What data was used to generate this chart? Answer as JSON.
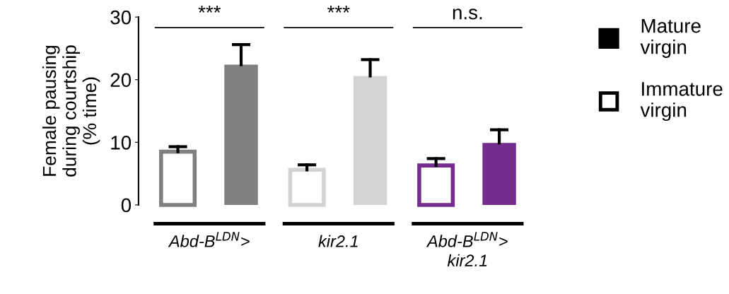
{
  "chart_data": {
    "type": "bar",
    "ylabel": "Female pausing\nduring courtship\n(% time)",
    "categories": [
      "Abd-B$^{LDN}$>",
      "kir2.1",
      "Abd-B$^{LDN}$>\nkir2.1"
    ],
    "series": [
      {
        "name": "Immature\nvirgin",
        "color": "#000000",
        "colors": [
          "#808080",
          "#d3d3d3",
          "#742c8e"
        ],
        "values": [
          8.5,
          5.6,
          6.3
        ],
        "errors": [
          [
            8.5,
            9.3
          ],
          [
            5.6,
            6.4
          ],
          [
            6.3,
            7.4
          ]
        ]
      },
      {
        "name": "Mature\nvirgin",
        "color": "#000000",
        "colors": [
          "#808080",
          "#d3d3d3",
          "#742c8e"
        ],
        "values": [
          22.4,
          20.6,
          9.9
        ],
        "errors": [
          [
            22.4,
            25.6
          ],
          [
            20.6,
            23.2
          ],
          [
            9.9,
            12.0
          ]
        ]
      }
    ],
    "annotations": [
      "***",
      "***",
      "n.s."
    ],
    "ylim": [
      0,
      30
    ],
    "yticks": [
      0,
      10,
      20,
      30
    ],
    "grid": false,
    "legend": "right"
  }
}
